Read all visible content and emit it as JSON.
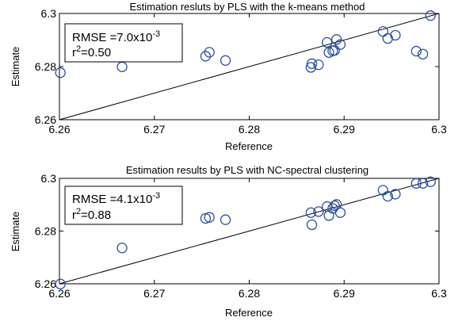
{
  "chart_data": [
    {
      "type": "scatter",
      "title": "Estimation resluts by PLS with the k-means method",
      "xlabel": "Reference",
      "ylabel": "Estimate",
      "xlim": [
        6.26,
        6.3
      ],
      "ylim": [
        6.26,
        6.3
      ],
      "xticks": [
        6.26,
        6.27,
        6.28,
        6.29,
        6.3
      ],
      "xtick_labels": [
        "6.26",
        "6.27",
        "6.28",
        "6.29",
        "6.3"
      ],
      "yticks": [
        6.26,
        6.28,
        6.3
      ],
      "ytick_labels": [
        "6.26",
        "6.28",
        "6.3"
      ],
      "grid": false,
      "reference_line": "y = x",
      "annotation": {
        "rmse_prefix": "RMSE =7.0x10",
        "rmse_exp": "-3",
        "r2_prefix": "r",
        "r2_exp": "2",
        "r2_value": "=0.50"
      },
      "marker_color": "#2a4f9e",
      "points": [
        [
          6.2601,
          6.2777
        ],
        [
          6.2666,
          6.2799
        ],
        [
          6.2754,
          6.2839
        ],
        [
          6.2758,
          6.2854
        ],
        [
          6.2775,
          6.2823
        ],
        [
          6.2865,
          6.2797
        ],
        [
          6.2866,
          6.2811
        ],
        [
          6.2873,
          6.2807
        ],
        [
          6.2882,
          6.2891
        ],
        [
          6.2884,
          6.2853
        ],
        [
          6.2888,
          6.2859
        ],
        [
          6.289,
          6.2861
        ],
        [
          6.2892,
          6.2902
        ],
        [
          6.2896,
          6.2883
        ],
        [
          6.2941,
          6.2932
        ],
        [
          6.2946,
          6.2906
        ],
        [
          6.2954,
          6.2918
        ],
        [
          6.2976,
          6.2858
        ],
        [
          6.2983,
          6.2847
        ],
        [
          6.2991,
          6.2992
        ]
      ]
    },
    {
      "type": "scatter",
      "title": "Estimation results by PLS with NC-spectral clustering",
      "xlabel": "Reference",
      "ylabel": "Estimate",
      "xlim": [
        6.26,
        6.3
      ],
      "ylim": [
        6.26,
        6.3
      ],
      "xticks": [
        6.26,
        6.27,
        6.28,
        6.29,
        6.3
      ],
      "xtick_labels": [
        "6.26",
        "6.27",
        "6.28",
        "6.29",
        "6.3"
      ],
      "yticks": [
        6.26,
        6.28,
        6.3
      ],
      "ytick_labels": [
        "6.26",
        "6.28",
        "6.3"
      ],
      "grid": false,
      "reference_line": "y = x",
      "annotation": {
        "rmse_prefix": "RMSE =4.1x10",
        "rmse_exp": "-3",
        "r2_prefix": "r",
        "r2_exp": "2",
        "r2_value": "=0.88"
      },
      "marker_color": "#2a4f9e",
      "points": [
        [
          6.2601,
          6.2599
        ],
        [
          6.2666,
          6.2736
        ],
        [
          6.2754,
          6.2848
        ],
        [
          6.2758,
          6.2852
        ],
        [
          6.2775,
          6.2843
        ],
        [
          6.2865,
          6.287
        ],
        [
          6.2866,
          6.2824
        ],
        [
          6.2873,
          6.2874
        ],
        [
          6.2882,
          6.2893
        ],
        [
          6.2884,
          6.2859
        ],
        [
          6.2888,
          6.2886
        ],
        [
          6.289,
          6.2896
        ],
        [
          6.2892,
          6.2901
        ],
        [
          6.2896,
          6.287
        ],
        [
          6.2941,
          6.2955
        ],
        [
          6.2946,
          6.2932
        ],
        [
          6.2954,
          6.294
        ],
        [
          6.2976,
          6.2981
        ],
        [
          6.2983,
          6.2981
        ],
        [
          6.2991,
          6.2987
        ]
      ]
    }
  ]
}
